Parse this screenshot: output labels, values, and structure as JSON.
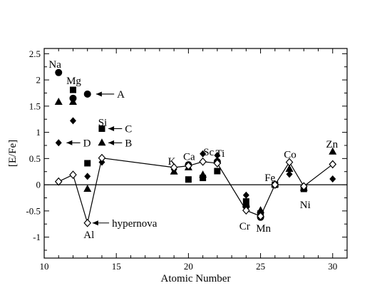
{
  "chart_data": {
    "type": "scatter",
    "xlabel": "Atomic Number",
    "ylabel": "[E/Fe]",
    "xlim": [
      10,
      31
    ],
    "ylim": [
      -1.4,
      2.6
    ],
    "xticks": [
      10,
      15,
      20,
      25,
      30
    ],
    "yticks": [
      -1,
      -0.5,
      0,
      0.5,
      1,
      1.5,
      2,
      2.5
    ],
    "ytick_labels": [
      "-1",
      "-0.5",
      "0",
      "0.5",
      "1",
      "1.5",
      "2",
      "2.5"
    ],
    "reference_line_y": 0,
    "series": [
      {
        "marker": "circle",
        "points": [
          {
            "x": 11,
            "y": 2.14
          },
          {
            "x": 12,
            "y": 1.65
          },
          {
            "x": 13,
            "y": 1.73
          },
          {
            "x": 20,
            "y": 0.38
          },
          {
            "x": 22,
            "y": 0.44
          },
          {
            "x": 24,
            "y": -0.41
          },
          {
            "x": 25,
            "y": -0.62
          },
          {
            "x": 26,
            "y": 0
          }
        ]
      },
      {
        "marker": "square",
        "points": [
          {
            "x": 12,
            "y": 1.81
          },
          {
            "x": 13,
            "y": 0.41
          },
          {
            "x": 14,
            "y": 1.07
          },
          {
            "x": 20,
            "y": 0.1
          },
          {
            "x": 21,
            "y": 0.13
          },
          {
            "x": 22,
            "y": 0.26
          },
          {
            "x": 24,
            "y": -0.32
          },
          {
            "x": 25,
            "y": -0.55
          },
          {
            "x": 26,
            "y": 0
          },
          {
            "x": 28,
            "y": -0.08
          }
        ]
      },
      {
        "marker": "triangle",
        "points": [
          {
            "x": 11,
            "y": 1.58
          },
          {
            "x": 12,
            "y": 1.58
          },
          {
            "x": 13,
            "y": -0.08
          },
          {
            "x": 14,
            "y": 0.8
          },
          {
            "x": 19,
            "y": 0.25
          },
          {
            "x": 20,
            "y": 0.33
          },
          {
            "x": 21,
            "y": 0.19
          },
          {
            "x": 22,
            "y": 0.46
          },
          {
            "x": 24,
            "y": -0.38
          },
          {
            "x": 25,
            "y": -0.49
          },
          {
            "x": 26,
            "y": 0.01
          },
          {
            "x": 27,
            "y": 0.3
          },
          {
            "x": 28,
            "y": -0.06
          },
          {
            "x": 30,
            "y": 0.63
          }
        ]
      },
      {
        "marker": "diamond",
        "points": [
          {
            "x": 11,
            "y": 0.8
          },
          {
            "x": 12,
            "y": 1.22
          },
          {
            "x": 13,
            "y": 0.16
          },
          {
            "x": 14,
            "y": 0.43
          },
          {
            "x": 19,
            "y": 0.29
          },
          {
            "x": 20,
            "y": 0.36
          },
          {
            "x": 21,
            "y": 0.59
          },
          {
            "x": 22,
            "y": 0.56
          },
          {
            "x": 24,
            "y": -0.2
          },
          {
            "x": 25,
            "y": -0.56
          },
          {
            "x": 26,
            "y": 0
          },
          {
            "x": 27,
            "y": 0.2
          },
          {
            "x": 28,
            "y": -0.07
          },
          {
            "x": 30,
            "y": 0.11
          }
        ]
      },
      {
        "name": "hypernova",
        "marker": "open-diamond",
        "connected": true,
        "points": [
          {
            "x": 11,
            "y": 0.06
          },
          {
            "x": 12,
            "y": 0.19
          },
          {
            "x": 13,
            "y": -0.73
          },
          {
            "x": 14,
            "y": 0.51
          },
          {
            "x": 19,
            "y": 0.33
          },
          {
            "x": 20,
            "y": 0.36
          },
          {
            "x": 21,
            "y": 0.44
          },
          {
            "x": 22,
            "y": 0.41
          },
          {
            "x": 24,
            "y": -0.49
          },
          {
            "x": 25,
            "y": -0.6
          },
          {
            "x": 26,
            "y": 0
          },
          {
            "x": 27,
            "y": 0.43
          },
          {
            "x": 28,
            "y": -0.03
          },
          {
            "x": 30,
            "y": 0.39
          }
        ]
      }
    ],
    "element_labels": [
      {
        "text": "Na",
        "x": 10.75,
        "y": 2.3
      },
      {
        "text": "Mg",
        "x": 12.05,
        "y": 1.99
      },
      {
        "text": "Si",
        "x": 14.05,
        "y": 1.19
      },
      {
        "text": "K",
        "x": 18.85,
        "y": 0.45
      },
      {
        "text": "Ca",
        "x": 20.05,
        "y": 0.54
      },
      {
        "text": "Sc",
        "x": 21.4,
        "y": 0.63
      },
      {
        "text": "Ti",
        "x": 22.2,
        "y": 0.6
      },
      {
        "text": "Cr",
        "x": 23.9,
        "y": -0.79
      },
      {
        "text": "Mn",
        "x": 25.2,
        "y": -0.83
      },
      {
        "text": "Fe",
        "x": 25.65,
        "y": 0.14
      },
      {
        "text": "Co",
        "x": 27.05,
        "y": 0.58
      },
      {
        "text": "Ni",
        "x": 28.1,
        "y": -0.38
      },
      {
        "text": "Zn",
        "x": 29.95,
        "y": 0.78
      }
    ],
    "annotations": [
      {
        "text": "A",
        "arrow_from_x": 14.85,
        "arrow_to_x": 13.6,
        "y": 1.73
      },
      {
        "text": "C",
        "arrow_from_x": 15.4,
        "arrow_to_x": 14.45,
        "y": 1.07
      },
      {
        "text": "B",
        "arrow_from_x": 15.4,
        "arrow_to_x": 14.45,
        "y": 0.8
      },
      {
        "text": "D",
        "arrow_from_x": 12.5,
        "arrow_to_x": 11.55,
        "y": 0.8
      },
      {
        "text": "hypernova",
        "arrow_from_x": 14.5,
        "arrow_to_x": 13.35,
        "y": -0.73
      }
    ],
    "extra_labels": [
      {
        "text": "Al",
        "x": 13.1,
        "y": -0.95
      }
    ]
  }
}
